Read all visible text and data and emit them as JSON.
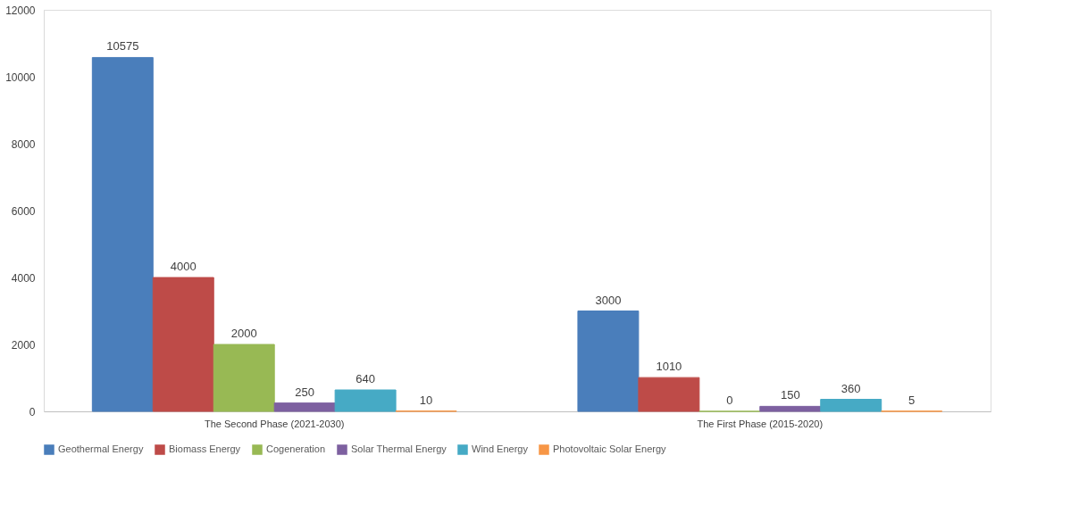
{
  "chart_data": {
    "type": "bar",
    "categories": [
      "The Second Phase (2021-2030)",
      "The First Phase (2015-2020)"
    ],
    "series": [
      {
        "name": "Geothermal Energy",
        "color": "#4a7ebb",
        "values": [
          10575,
          3000
        ]
      },
      {
        "name": "Biomass Energy",
        "color": "#be4b48",
        "values": [
          4000,
          1010
        ]
      },
      {
        "name": "Cogeneration",
        "color": "#98b954",
        "values": [
          2000,
          0
        ]
      },
      {
        "name": "Solar Thermal Energy",
        "color": "#7d60a0",
        "values": [
          250,
          150
        ]
      },
      {
        "name": "Wind Energy",
        "color": "#46aac5",
        "values": [
          640,
          360
        ]
      },
      {
        "name": "Photovoltaic Solar Energy",
        "color": "#f79646",
        "values": [
          10,
          5
        ]
      }
    ],
    "ylim": [
      0,
      12000
    ],
    "yticks": [
      0,
      2000,
      4000,
      6000,
      8000,
      10000,
      12000
    ],
    "grid": false,
    "legend": "bottom",
    "data_labels": true
  }
}
